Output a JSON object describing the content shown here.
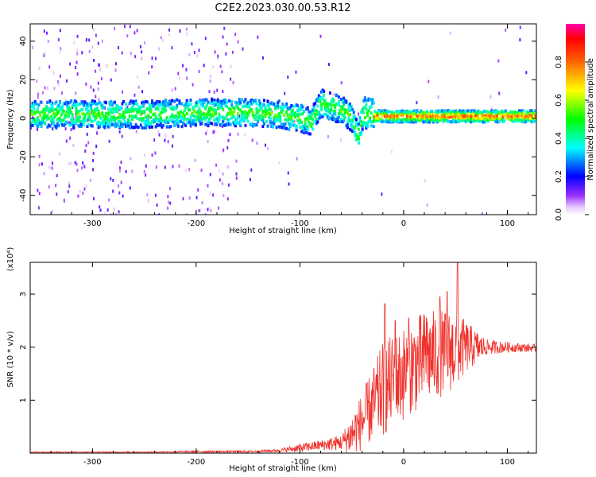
{
  "title": "C2E2.2023.030.00.53.R12",
  "chart_data": [
    {
      "type": "heatmap",
      "xlabel": "Height of straight line (km)",
      "ylabel": "Frequency (Hz)",
      "xlim": [
        -360,
        128
      ],
      "ylim": [
        -50,
        49
      ],
      "xticks": [
        -300,
        -200,
        -100,
        0,
        100
      ],
      "yticks": [
        -40,
        -20,
        0,
        20,
        40
      ],
      "xtick_labels": [
        "-300",
        "-200",
        "-100",
        "0",
        "100"
      ],
      "ytick_labels": [
        "-40",
        "-20",
        "0",
        "20",
        "40"
      ],
      "colorbar": {
        "label": "Normalized spectral amplitude",
        "range": [
          0,
          1
        ],
        "ticks": [
          0.0,
          0.2,
          0.4,
          0.6,
          0.8
        ],
        "tick_labels": [
          "0.0",
          "0.2",
          "0.4",
          "0.6",
          "0.8"
        ]
      },
      "band_centerline": {
        "x": [
          -360,
          -300,
          -250,
          -200,
          -150,
          -120,
          -100,
          -90,
          -80,
          -60,
          -50,
          -45,
          -40,
          -35,
          -30,
          0,
          50,
          128
        ],
        "y": [
          2,
          2,
          2,
          3,
          3,
          2,
          0,
          -2,
          8,
          4,
          0,
          -10,
          2,
          2,
          1,
          1,
          1,
          1
        ]
      },
      "grid": false
    },
    {
      "type": "line",
      "xlabel": "Height of straight line (km)",
      "ylabel": "SNR (10 * v/v)",
      "y_multiplier": "(x10⁴)",
      "xlim": [
        -360,
        128
      ],
      "ylim": [
        0,
        3.6
      ],
      "xticks": [
        -300,
        -200,
        -100,
        0,
        100
      ],
      "yticks": [
        1,
        2,
        3
      ],
      "xtick_labels": [
        "-300",
        "-200",
        "-100",
        "0",
        "100"
      ],
      "ytick_labels": [
        "1",
        "2",
        "3"
      ],
      "series": [
        {
          "color": "#f0302a",
          "envelope_x": [
            -360,
            -250,
            -200,
            -150,
            -120,
            -100,
            -80,
            -60,
            -50,
            -40,
            -30,
            -20,
            -10,
            0,
            10,
            20,
            30,
            40,
            50,
            60,
            80,
            100,
            128
          ],
          "envelope_mean": [
            0.02,
            0.02,
            0.03,
            0.03,
            0.05,
            0.1,
            0.15,
            0.2,
            0.35,
            0.6,
            0.9,
            1.2,
            1.35,
            1.5,
            1.65,
            1.8,
            1.85,
            1.9,
            1.95,
            2.0,
            2.0,
            2.0,
            1.98
          ],
          "envelope_amp": [
            0.01,
            0.01,
            0.02,
            0.02,
            0.03,
            0.08,
            0.1,
            0.15,
            0.4,
            0.55,
            0.7,
            0.9,
            0.9,
            0.9,
            0.9,
            0.9,
            0.85,
            0.8,
            0.75,
            0.5,
            0.15,
            0.1,
            0.07
          ],
          "peaks": [
            [
              -18,
              2.82
            ],
            [
              5,
              2.55
            ],
            [
              22,
              2.55
            ],
            [
              35,
              2.95
            ],
            [
              42,
              3.05
            ],
            [
              52,
              3.6
            ],
            [
              -8,
              2.5
            ]
          ]
        }
      ],
      "grid": false
    }
  ]
}
